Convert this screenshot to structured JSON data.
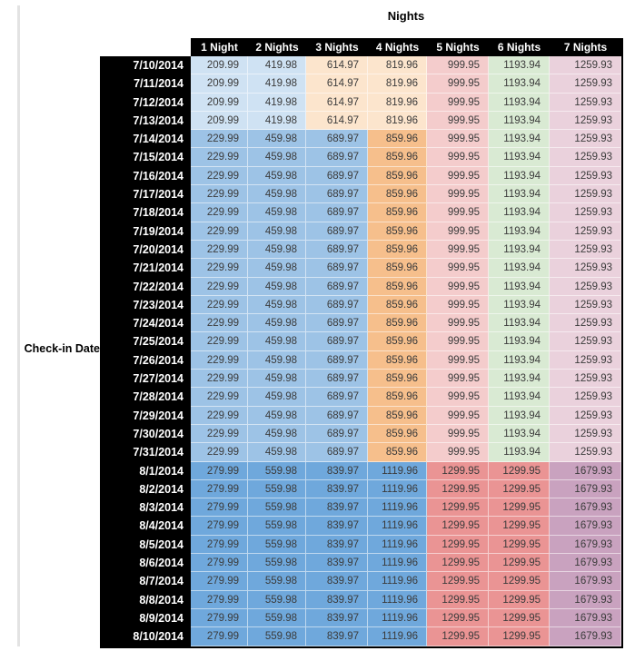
{
  "chart_data": {
    "type": "table",
    "title": "Nights",
    "row_axis_label": "Check-in Date",
    "columns": [
      "1 Night",
      "2 Nights",
      "3 Nights",
      "4 Nights",
      "5 Nights",
      "6 Nights",
      "7 Nights"
    ],
    "colors": {
      "lightBlue": "#cfe2f3",
      "lightOrange": "#fce5cd",
      "medBlue": "#9dc3e6",
      "medOrange": "#f6bf8c",
      "lightRed": "#f4cccc",
      "lightGreen": "#d9ead3",
      "lightMagenta": "#ead1dc",
      "darkBlue": "#6fa8dc",
      "darkRed": "#ea9494",
      "darkMagenta": "#c9a2bf",
      "headerBg": "#000000",
      "headerText": "#ffffff",
      "valueText": "#3b3b3b",
      "dividerLine": "#e3e3e3"
    },
    "bands": {
      "A": [
        "lightBlue",
        "lightBlue",
        "lightOrange",
        "lightOrange",
        "lightRed",
        "lightGreen",
        "lightMagenta"
      ],
      "B": [
        "medBlue",
        "medBlue",
        "medBlue",
        "medOrange",
        "lightRed",
        "lightGreen",
        "lightMagenta"
      ],
      "C": [
        "darkBlue",
        "darkBlue",
        "darkBlue",
        "darkBlue",
        "darkRed",
        "darkRed",
        "darkMagenta"
      ]
    },
    "rows": [
      {
        "date": "7/10/2014",
        "band": "A",
        "values": [
          "209.99",
          "419.98",
          "614.97",
          "819.96",
          "999.95",
          "1193.94",
          "1259.93"
        ]
      },
      {
        "date": "7/11/2014",
        "band": "A",
        "values": [
          "209.99",
          "419.98",
          "614.97",
          "819.96",
          "999.95",
          "1193.94",
          "1259.93"
        ]
      },
      {
        "date": "7/12/2014",
        "band": "A",
        "values": [
          "209.99",
          "419.98",
          "614.97",
          "819.96",
          "999.95",
          "1193.94",
          "1259.93"
        ]
      },
      {
        "date": "7/13/2014",
        "band": "A",
        "values": [
          "209.99",
          "419.98",
          "614.97",
          "819.96",
          "999.95",
          "1193.94",
          "1259.93"
        ]
      },
      {
        "date": "7/14/2014",
        "band": "B",
        "values": [
          "229.99",
          "459.98",
          "689.97",
          "859.96",
          "999.95",
          "1193.94",
          "1259.93"
        ]
      },
      {
        "date": "7/15/2014",
        "band": "B",
        "values": [
          "229.99",
          "459.98",
          "689.97",
          "859.96",
          "999.95",
          "1193.94",
          "1259.93"
        ]
      },
      {
        "date": "7/16/2014",
        "band": "B",
        "values": [
          "229.99",
          "459.98",
          "689.97",
          "859.96",
          "999.95",
          "1193.94",
          "1259.93"
        ]
      },
      {
        "date": "7/17/2014",
        "band": "B",
        "values": [
          "229.99",
          "459.98",
          "689.97",
          "859.96",
          "999.95",
          "1193.94",
          "1259.93"
        ]
      },
      {
        "date": "7/18/2014",
        "band": "B",
        "values": [
          "229.99",
          "459.98",
          "689.97",
          "859.96",
          "999.95",
          "1193.94",
          "1259.93"
        ]
      },
      {
        "date": "7/19/2014",
        "band": "B",
        "values": [
          "229.99",
          "459.98",
          "689.97",
          "859.96",
          "999.95",
          "1193.94",
          "1259.93"
        ]
      },
      {
        "date": "7/20/2014",
        "band": "B",
        "values": [
          "229.99",
          "459.98",
          "689.97",
          "859.96",
          "999.95",
          "1193.94",
          "1259.93"
        ]
      },
      {
        "date": "7/21/2014",
        "band": "B",
        "values": [
          "229.99",
          "459.98",
          "689.97",
          "859.96",
          "999.95",
          "1193.94",
          "1259.93"
        ]
      },
      {
        "date": "7/22/2014",
        "band": "B",
        "values": [
          "229.99",
          "459.98",
          "689.97",
          "859.96",
          "999.95",
          "1193.94",
          "1259.93"
        ]
      },
      {
        "date": "7/23/2014",
        "band": "B",
        "values": [
          "229.99",
          "459.98",
          "689.97",
          "859.96",
          "999.95",
          "1193.94",
          "1259.93"
        ]
      },
      {
        "date": "7/24/2014",
        "band": "B",
        "values": [
          "229.99",
          "459.98",
          "689.97",
          "859.96",
          "999.95",
          "1193.94",
          "1259.93"
        ]
      },
      {
        "date": "7/25/2014",
        "band": "B",
        "values": [
          "229.99",
          "459.98",
          "689.97",
          "859.96",
          "999.95",
          "1193.94",
          "1259.93"
        ]
      },
      {
        "date": "7/26/2014",
        "band": "B",
        "values": [
          "229.99",
          "459.98",
          "689.97",
          "859.96",
          "999.95",
          "1193.94",
          "1259.93"
        ]
      },
      {
        "date": "7/27/2014",
        "band": "B",
        "values": [
          "229.99",
          "459.98",
          "689.97",
          "859.96",
          "999.95",
          "1193.94",
          "1259.93"
        ]
      },
      {
        "date": "7/28/2014",
        "band": "B",
        "values": [
          "229.99",
          "459.98",
          "689.97",
          "859.96",
          "999.95",
          "1193.94",
          "1259.93"
        ]
      },
      {
        "date": "7/29/2014",
        "band": "B",
        "values": [
          "229.99",
          "459.98",
          "689.97",
          "859.96",
          "999.95",
          "1193.94",
          "1259.93"
        ]
      },
      {
        "date": "7/30/2014",
        "band": "B",
        "values": [
          "229.99",
          "459.98",
          "689.97",
          "859.96",
          "999.95",
          "1193.94",
          "1259.93"
        ]
      },
      {
        "date": "7/31/2014",
        "band": "B",
        "values": [
          "229.99",
          "459.98",
          "689.97",
          "859.96",
          "999.95",
          "1193.94",
          "1259.93"
        ]
      },
      {
        "date": "8/1/2014",
        "band": "C",
        "values": [
          "279.99",
          "559.98",
          "839.97",
          "1119.96",
          "1299.95",
          "1299.95",
          "1679.93"
        ]
      },
      {
        "date": "8/2/2014",
        "band": "C",
        "values": [
          "279.99",
          "559.98",
          "839.97",
          "1119.96",
          "1299.95",
          "1299.95",
          "1679.93"
        ]
      },
      {
        "date": "8/3/2014",
        "band": "C",
        "values": [
          "279.99",
          "559.98",
          "839.97",
          "1119.96",
          "1299.95",
          "1299.95",
          "1679.93"
        ]
      },
      {
        "date": "8/4/2014",
        "band": "C",
        "values": [
          "279.99",
          "559.98",
          "839.97",
          "1119.96",
          "1299.95",
          "1299.95",
          "1679.93"
        ]
      },
      {
        "date": "8/5/2014",
        "band": "C",
        "values": [
          "279.99",
          "559.98",
          "839.97",
          "1119.96",
          "1299.95",
          "1299.95",
          "1679.93"
        ]
      },
      {
        "date": "8/6/2014",
        "band": "C",
        "values": [
          "279.99",
          "559.98",
          "839.97",
          "1119.96",
          "1299.95",
          "1299.95",
          "1679.93"
        ]
      },
      {
        "date": "8/7/2014",
        "band": "C",
        "values": [
          "279.99",
          "559.98",
          "839.97",
          "1119.96",
          "1299.95",
          "1299.95",
          "1679.93"
        ]
      },
      {
        "date": "8/8/2014",
        "band": "C",
        "values": [
          "279.99",
          "559.98",
          "839.97",
          "1119.96",
          "1299.95",
          "1299.95",
          "1679.93"
        ]
      },
      {
        "date": "8/9/2014",
        "band": "C",
        "values": [
          "279.99",
          "559.98",
          "839.97",
          "1119.96",
          "1299.95",
          "1299.95",
          "1679.93"
        ]
      },
      {
        "date": "8/10/2014",
        "band": "C",
        "values": [
          "279.99",
          "559.98",
          "839.97",
          "1119.96",
          "1299.95",
          "1299.95",
          "1679.93"
        ]
      }
    ]
  }
}
